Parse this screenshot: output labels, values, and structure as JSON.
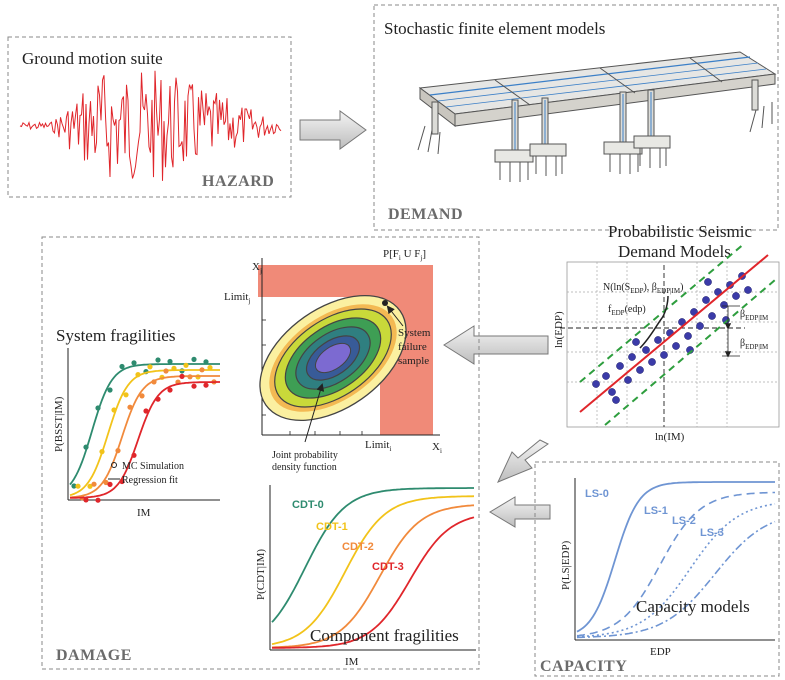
{
  "panels": {
    "hazard": {
      "title": "Ground motion suite",
      "stage": "HAZARD"
    },
    "demand": {
      "title": "Stochastic finite element models",
      "stage": "DEMAND"
    },
    "psdm": {
      "title_line1": "Probabilistic Seismic",
      "title_line2": "Demand Models",
      "ylabel": "ln(EDP)",
      "xlabel": "ln(IM)",
      "normal_label": "N(ln(S",
      "normal_sub1": "EDP",
      "normal_mid": "), β",
      "normal_sub2": "EDP|IM",
      "normal_end": ")",
      "pdf_label": "f",
      "pdf_sub": "EDP",
      "pdf_end": "(edp)",
      "beta1": "β",
      "beta1_sub": "EDP|IM",
      "beta2": "β",
      "beta2_sub": "EDP|IM"
    },
    "damage": {
      "stage": "DAMAGE",
      "system_title": "System fragilities",
      "system_ylabel": "P(BSST|IM)",
      "system_xlabel": "IM",
      "legend_mc": "MC Simulation",
      "legend_fit": "Regression fit",
      "joint_title": "P[F",
      "joint_title_sub1": "i",
      "joint_title_mid": " U F",
      "joint_title_sub2": "j",
      "joint_title_end": "]",
      "joint_xj": "X",
      "joint_xj_sub": "j",
      "joint_xi": "X",
      "joint_xi_sub": "i",
      "limit_j": "Limit",
      "limit_j_sub": "j",
      "limit_i": "Limit",
      "limit_i_sub": "i",
      "failure_line1": "System",
      "failure_line2": "failure",
      "failure_line3": "sample",
      "jpdf_line1": "Joint probability",
      "jpdf_line2": "density function",
      "comp_title": "Component fragilities",
      "comp_ylabel": "P(CDT|IM)",
      "comp_xlabel": "IM",
      "cdt_labels": [
        "CDT-0",
        "CDT-1",
        "CDT-2",
        "CDT-3"
      ]
    },
    "capacity": {
      "stage": "CAPACITY",
      "title": "Capacity models",
      "ylabel": "P(LS|EDP)",
      "xlabel": "EDP",
      "ls_labels": [
        "LS-0",
        "LS-1",
        "LS-2",
        "LS-3"
      ]
    }
  },
  "colors": {
    "seismogram": "#e0262b",
    "cdt": [
      "#2e8b6f",
      "#f2c31a",
      "#f18a3c",
      "#e0262b"
    ],
    "capacity": "#6f95d3",
    "failure_region": "#f08a78",
    "psdm_fit": "#e0262b",
    "psdm_band": "#2e9e3e",
    "psdm_points": "#3b3ba8"
  }
}
